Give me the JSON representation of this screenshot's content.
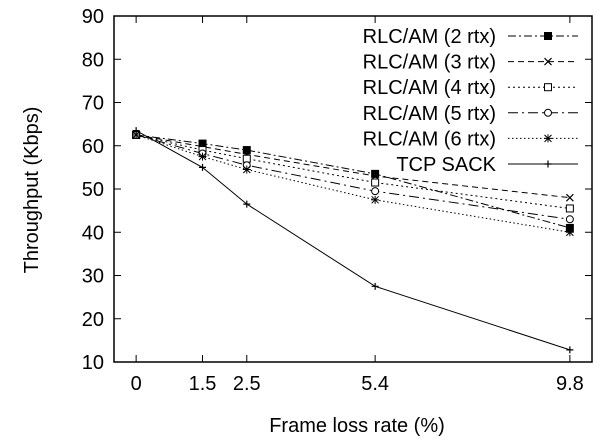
{
  "chart_data": {
    "type": "line",
    "title": "",
    "xlabel": "Frame loss rate (%)",
    "ylabel": "Throughput (Kbps)",
    "x": [
      0,
      1.5,
      2.5,
      5.4,
      9.8
    ],
    "x_tick_labels": [
      "0",
      "1.5",
      "2.5",
      "5.4",
      "9.8"
    ],
    "xlim": [
      -0.5,
      10.3
    ],
    "ylim": [
      10,
      90
    ],
    "y_ticks": [
      10,
      20,
      30,
      40,
      50,
      60,
      70,
      80,
      90
    ],
    "grid": false,
    "legend_position": "top-right",
    "series": [
      {
        "name": "RLC/AM (2 rtx)",
        "marker": "filled-square",
        "dash": "dashdot",
        "values": [
          62.5,
          60.5,
          59.0,
          53.5,
          41.0
        ]
      },
      {
        "name": "RLC/AM (3 rtx)",
        "marker": "x",
        "dash": "dashed",
        "values": [
          62.5,
          59.8,
          58.0,
          53.0,
          48.0
        ]
      },
      {
        "name": "RLC/AM (4 rtx)",
        "marker": "open-square",
        "dash": "dotted",
        "values": [
          62.5,
          59.0,
          57.0,
          51.5,
          45.5
        ]
      },
      {
        "name": "RLC/AM (5 rtx)",
        "marker": "open-circle",
        "dash": "dashdot-sparse",
        "values": [
          62.5,
          58.2,
          55.5,
          49.5,
          43.0
        ]
      },
      {
        "name": "RLC/AM (6 rtx)",
        "marker": "star",
        "dash": "fine-dotted",
        "values": [
          62.5,
          57.5,
          54.5,
          47.5,
          40.0
        ]
      },
      {
        "name": "TCP SACK",
        "marker": "plus",
        "dash": "solid",
        "values": [
          63.5,
          55.0,
          46.5,
          27.5,
          12.8
        ]
      }
    ]
  }
}
